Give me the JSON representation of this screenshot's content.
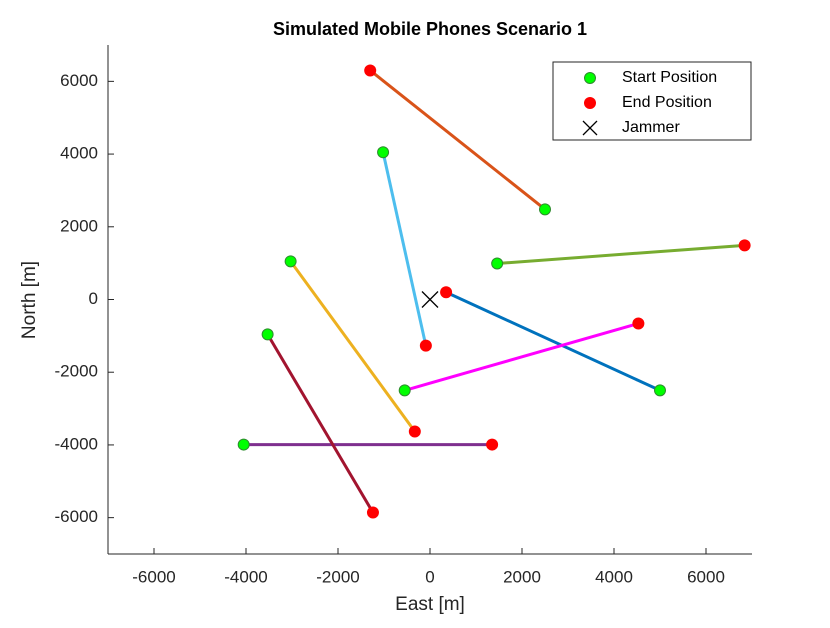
{
  "chart_data": {
    "type": "line",
    "title": "Simulated Mobile Phones Scenario 1",
    "xlabel": "East [m]",
    "ylabel": "North [m]",
    "xlim": [
      -7000,
      7000
    ],
    "ylim": [
      -7000,
      7000
    ],
    "xticks": [
      -6000,
      -4000,
      -2000,
      0,
      2000,
      4000,
      6000
    ],
    "yticks": [
      -6000,
      -4000,
      -2000,
      0,
      2000,
      4000,
      6000
    ],
    "legend": "upper right",
    "trajectories": [
      {
        "color": "#0072bd",
        "x": [
          5000,
          350
        ],
        "y": [
          -2500,
          200
        ]
      },
      {
        "color": "#d95319",
        "x": [
          2500,
          -1300
        ],
        "y": [
          2480,
          6300
        ]
      },
      {
        "color": "#edb120",
        "x": [
          -3030,
          -330
        ],
        "y": [
          1050,
          -3630
        ]
      },
      {
        "color": "#7e2f8e",
        "x": [
          -4050,
          1350
        ],
        "y": [
          -3990,
          -3990
        ]
      },
      {
        "color": "#77ac30",
        "x": [
          1460,
          6840
        ],
        "y": [
          990,
          1490
        ]
      },
      {
        "color": "#4dbeee",
        "x": [
          -1020,
          -90
        ],
        "y": [
          4050,
          -1270
        ]
      },
      {
        "color": "#a2142f",
        "x": [
          -3530,
          -1240
        ],
        "y": [
          -960,
          -5860
        ]
      },
      {
        "color": "#ff00ff",
        "x": [
          -550,
          4530
        ],
        "y": [
          -2500,
          -660
        ]
      }
    ],
    "start": {
      "name": "Start Position",
      "color": "#00ff00",
      "edge": "#2e8b2e"
    },
    "end": {
      "name": "End Position",
      "color": "#ff0000"
    },
    "jammer": {
      "name": "Jammer",
      "x": 0,
      "y": 0,
      "color": "#000000"
    }
  }
}
